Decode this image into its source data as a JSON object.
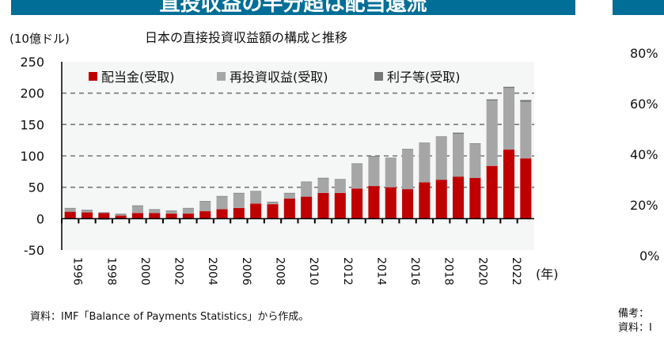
{
  "banner": {
    "title": "直投収益の半分超は配当還流",
    "color": "#006E96"
  },
  "left_panel": {
    "unit_label": "(10億ドル)",
    "chart_title": "日本の直接投資収益額の構成と推移",
    "x_unit_label": "(年)",
    "source": "資料：IMF「Balance of Payments Statistics」から作成。"
  },
  "chart_data": {
    "type": "bar",
    "stacked": true,
    "title": "日本の直接投資収益額の構成と推移",
    "ylabel": "(10億ドル)",
    "xlabel": "(年)",
    "ylim": [
      -50,
      250
    ],
    "yticks": [
      -50,
      0,
      50,
      100,
      150,
      200,
      250
    ],
    "grid": "dashed horizontal at 50,100,150,200",
    "legend": "top",
    "categories": [
      1996,
      1997,
      1998,
      1999,
      2000,
      2001,
      2002,
      2003,
      2004,
      2005,
      2006,
      2007,
      2008,
      2009,
      2010,
      2011,
      2012,
      2013,
      2014,
      2015,
      2016,
      2017,
      2018,
      2019,
      2020,
      2021,
      2022,
      2023
    ],
    "xtick_labels": [
      "1996",
      "1998",
      "2000",
      "2002",
      "2004",
      "2006",
      "2008",
      "2010",
      "2012",
      "2014",
      "2016",
      "2018",
      "2020",
      "2022"
    ],
    "series": [
      {
        "name": "配当金(受取)",
        "color": "#C00000",
        "values": [
          11,
          10,
          9,
          5,
          9,
          9,
          8,
          8,
          12,
          15,
          17,
          24,
          23,
          32,
          35,
          41,
          41,
          48,
          52,
          50,
          47,
          58,
          62,
          67,
          65,
          84,
          110,
          96
        ]
      },
      {
        "name": "再投資収益(受取)",
        "color": "#A6A6A6",
        "values": [
          5,
          3,
          -2,
          2,
          11,
          5,
          4,
          8,
          15,
          20,
          23,
          19,
          3,
          8,
          23,
          23,
          21,
          39,
          47,
          46,
          63,
          62,
          68,
          68,
          54,
          104,
          98,
          90
        ]
      },
      {
        "name": "利子等(受取)",
        "color": "#767676",
        "values": [
          1,
          1,
          1,
          1,
          1,
          1,
          1,
          1,
          1,
          1,
          1,
          1,
          1,
          1,
          1,
          1,
          1,
          1,
          1,
          1,
          1,
          1,
          1,
          2,
          1,
          2,
          2,
          3
        ]
      }
    ]
  },
  "right_panel": {
    "yticks": [
      "80%",
      "60%",
      "40%",
      "20%",
      "0%"
    ],
    "note_prefix": "備考：",
    "source_prefix": "資料：I"
  }
}
